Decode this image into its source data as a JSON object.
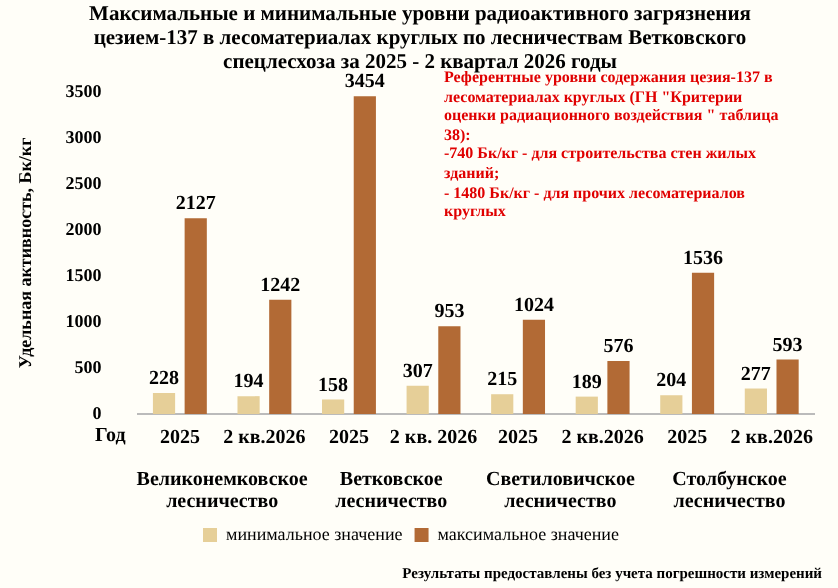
{
  "chart_data": {
    "type": "bar",
    "title": "Максимальные и минимальные уровни радиоактивного загрязнения цезием-137 в  лесоматериалах круглых по лесничествам Ветковского спецлесхоза  за 2025 -  2 квартал 2026 годы",
    "xlabel": "Год",
    "ylabel": "Удельная активность, Бк/кг",
    "categories": [
      "2025",
      "2 кв.2026",
      "2025",
      "2 кв. 2026",
      "2025",
      "2 кв.2026",
      "2025",
      "2 кв.2026"
    ],
    "series": [
      {
        "name": "минимальное значение",
        "color": "#e6cf98",
        "values": [
          228,
          194,
          158,
          307,
          215,
          189,
          204,
          277
        ]
      },
      {
        "name": "максимальное значение",
        "color": "#b26a35",
        "values": [
          2127,
          1242,
          3454,
          953,
          1024,
          576,
          1536,
          593
        ]
      }
    ],
    "ylim": [
      0,
      3500
    ],
    "yticks": [
      0,
      500,
      1000,
      1500,
      2000,
      2500,
      3000,
      3500
    ],
    "grid": false,
    "legend": "bottom",
    "data_labels": true,
    "annotations": [
      "Великонемковское лесничество",
      "Ветковское лесничество",
      "Светиловичское лесничество",
      "Столбунское лесничество",
      "Референтные уровни содержания цезия-137 в лесоматериалах круглых (ГН \"Критерии оценки радиационного воздействия \" таблица 38):\n-740 Бк/кг - для строительства стен жилых зданий;\n- 1480 Бк/кг - для прочих лесоматериалов круглых",
      "Результаты предоставлены без учета погрешности измерений"
    ]
  }
}
